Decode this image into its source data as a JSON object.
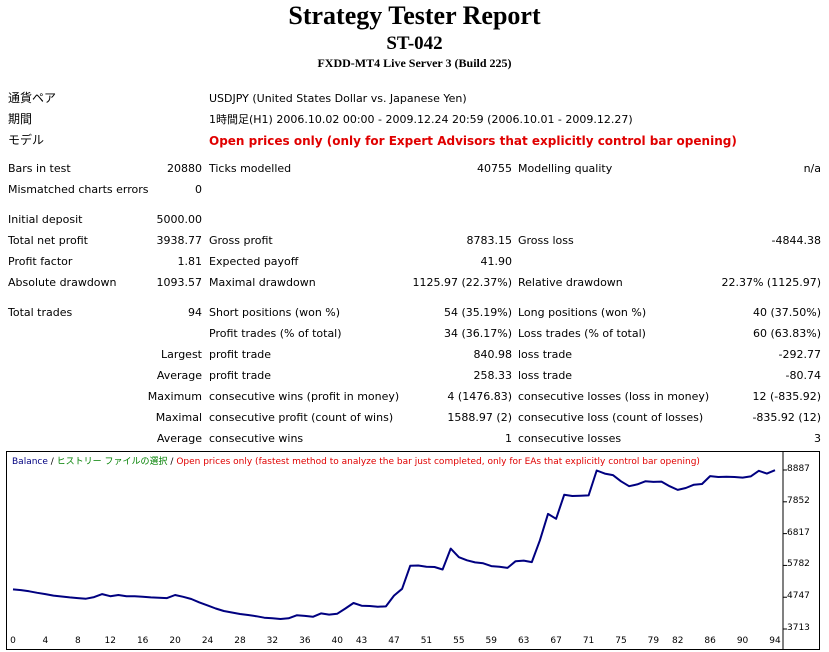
{
  "header": {
    "title": "Strategy Tester Report",
    "subtitle": "ST-042",
    "server": "FXDD-MT4 Live Server 3 (Build 225)"
  },
  "info": [
    {
      "label": "通貨ペア",
      "value": "USDJPY (United States Dollar vs. Japanese Yen)"
    },
    {
      "label": "期間",
      "value": "1時間足(H1) 2006.10.02 00:00 - 2009.12.24 20:59 (2006.10.01 - 2009.12.27)"
    },
    {
      "label": "モデル",
      "value": "Open prices only (only for Expert Advisors that explicitly control bar opening)"
    }
  ],
  "stats": {
    "bars_label": "Bars in test",
    "bars_value": "20880",
    "ticks_label": "Ticks modelled",
    "ticks_value": "40755",
    "quality_label": "Modelling quality",
    "quality_value": "n/a",
    "mismatch_label": "Mismatched charts errors",
    "mismatch_value": "0",
    "deposit_label": "Initial deposit",
    "deposit_value": "5000.00",
    "netprofit_label": "Total net profit",
    "netprofit_value": "3938.77",
    "grossprofit_label": "Gross profit",
    "grossprofit_value": "8783.15",
    "grossloss_label": "Gross loss",
    "grossloss_value": "-4844.38",
    "pf_label": "Profit factor",
    "pf_value": "1.81",
    "payoff_label": "Expected payoff",
    "payoff_value": "41.90",
    "absdd_label": "Absolute drawdown",
    "absdd_value": "1093.57",
    "maxdd_label": "Maximal drawdown",
    "maxdd_value": "1125.97 (22.37%)",
    "reldd_label": "Relative drawdown",
    "reldd_value": "22.37% (1125.97)",
    "trades_label": "Total trades",
    "trades_value": "94",
    "short_label": "Short positions (won %)",
    "short_value": "54 (35.19%)",
    "long_label": "Long positions (won %)",
    "long_value": "40 (37.50%)",
    "pt_label": "Profit trades (% of total)",
    "pt_value": "34 (36.17%)",
    "lt_label": "Loss trades (% of total)",
    "lt_value": "60 (63.83%)",
    "largest_label": "Largest",
    "largest_pt_label": "profit trade",
    "largest_pt_value": "840.98",
    "largest_lt_label": "loss trade",
    "largest_lt_value": "-292.77",
    "average_label": "Average",
    "average_pt_label": "profit trade",
    "average_pt_value": "258.33",
    "average_lt_label": "loss trade",
    "average_lt_value": "-80.74",
    "maximum_label": "Maximum",
    "maximum_cw_label": "consecutive wins (profit in money)",
    "maximum_cw_value": "4 (1476.83)",
    "maximum_cl_label": "consecutive losses (loss in money)",
    "maximum_cl_value": "12 (-835.92)",
    "maximal_label": "Maximal",
    "maximal_cp_label": "consecutive profit (count of wins)",
    "maximal_cp_value": "1588.97 (2)",
    "maximal_cl_label": "consecutive loss (count of losses)",
    "maximal_cl_value": "-835.92 (12)",
    "average2_label": "Average",
    "average2_cw_label": "consecutive wins",
    "average2_cw_value": "1",
    "average2_cl_label": "consecutive losses",
    "average2_cl_value": "3"
  },
  "colors": {
    "line": "#000080",
    "legend_balance": "#000080",
    "legend_history": "#008000",
    "legend_model": "#e00000"
  },
  "chart_data": {
    "type": "line",
    "legend": {
      "balance": "Balance",
      "sep1": " / ",
      "history": "ヒストリー ファイルの選択",
      "sep2": " / ",
      "model": "Open prices only (fastest method to analyze the bar just completed, only for EAs that explicitly control bar opening)"
    },
    "y_ticks": [
      "8887",
      "7852",
      "6817",
      "5782",
      "4747",
      "3713"
    ],
    "x_ticks": [
      "0",
      "4",
      "8",
      "12",
      "16",
      "20",
      "24",
      "28",
      "32",
      "36",
      "40",
      "43",
      "47",
      "51",
      "55",
      "59",
      "63",
      "67",
      "71",
      "75",
      "79",
      "82",
      "86",
      "90",
      "94"
    ],
    "ylim": [
      3713,
      8887
    ],
    "xlim": [
      0,
      94
    ],
    "x": [
      0,
      1,
      2,
      3,
      4,
      5,
      6,
      7,
      8,
      9,
      10,
      11,
      12,
      13,
      14,
      15,
      16,
      17,
      18,
      19,
      20,
      21,
      22,
      23,
      24,
      25,
      26,
      27,
      28,
      29,
      30,
      31,
      32,
      33,
      34,
      35,
      36,
      37,
      38,
      39,
      40,
      41,
      42,
      43,
      44,
      45,
      46,
      47,
      48,
      49,
      50,
      51,
      52,
      53,
      54,
      55,
      56,
      57,
      58,
      59,
      60,
      61,
      62,
      63,
      64,
      65,
      66,
      67,
      68,
      69,
      70,
      71,
      72,
      73,
      74,
      75,
      76,
      77,
      78,
      79,
      80,
      81,
      82,
      83,
      84,
      85,
      86,
      87,
      88,
      89,
      90,
      91,
      92,
      93,
      94
    ],
    "y": [
      5000,
      4980,
      4940,
      4890,
      4850,
      4800,
      4770,
      4740,
      4720,
      4700,
      4750,
      4850,
      4780,
      4820,
      4780,
      4780,
      4760,
      4740,
      4730,
      4720,
      4820,
      4760,
      4690,
      4580,
      4480,
      4380,
      4300,
      4250,
      4200,
      4170,
      4130,
      4080,
      4060,
      4040,
      4060,
      4160,
      4140,
      4110,
      4220,
      4180,
      4210,
      4380,
      4560,
      4470,
      4460,
      4440,
      4450,
      4800,
      5020,
      5770,
      5780,
      5740,
      5730,
      5650,
      6330,
      6050,
      5950,
      5880,
      5850,
      5760,
      5740,
      5700,
      5920,
      5940,
      5890,
      6600,
      7460,
      7300,
      8080,
      8040,
      8050,
      8060,
      8870,
      8770,
      8720,
      8520,
      8360,
      8420,
      8520,
      8500,
      8510,
      8360,
      8240,
      8300,
      8410,
      8430,
      8690,
      8660,
      8670,
      8660,
      8640,
      8680,
      8860,
      8770,
      8880
    ]
  }
}
